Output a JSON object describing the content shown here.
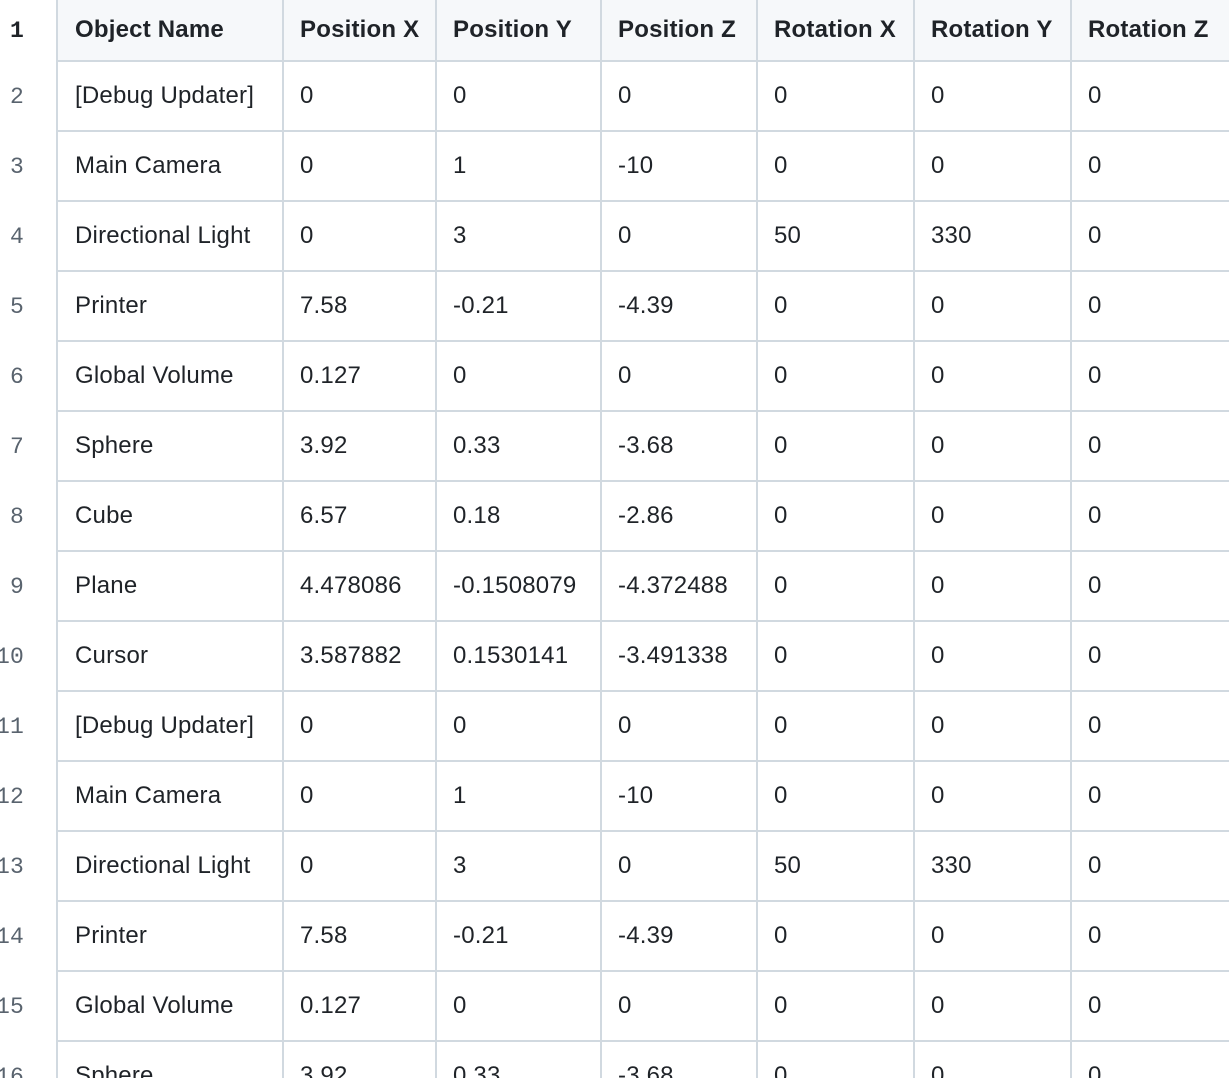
{
  "table": {
    "headers": [
      "Object Name",
      "Position X",
      "Position Y",
      "Position Z",
      "Rotation X",
      "Rotation Y",
      "Rotation Z"
    ],
    "rows": [
      {
        "line": "2",
        "cells": [
          "[Debug Updater]",
          "0",
          "0",
          "0",
          "0",
          "0",
          "0"
        ]
      },
      {
        "line": "3",
        "cells": [
          "Main Camera",
          "0",
          "1",
          "-10",
          "0",
          "0",
          "0"
        ]
      },
      {
        "line": "4",
        "cells": [
          "Directional Light",
          "0",
          "3",
          "0",
          "50",
          "330",
          "0"
        ]
      },
      {
        "line": "5",
        "cells": [
          "Printer",
          "7.58",
          "-0.21",
          "-4.39",
          "0",
          "0",
          "0"
        ]
      },
      {
        "line": "6",
        "cells": [
          "Global Volume",
          "0.127",
          "0",
          "0",
          "0",
          "0",
          "0"
        ]
      },
      {
        "line": "7",
        "cells": [
          "Sphere",
          "3.92",
          "0.33",
          "-3.68",
          "0",
          "0",
          "0"
        ]
      },
      {
        "line": "8",
        "cells": [
          "Cube",
          "6.57",
          "0.18",
          "-2.86",
          "0",
          "0",
          "0"
        ]
      },
      {
        "line": "9",
        "cells": [
          "Plane",
          "4.478086",
          "-0.1508079",
          "-4.372488",
          "0",
          "0",
          "0"
        ]
      },
      {
        "line": "10",
        "cells": [
          "Cursor",
          "3.587882",
          "0.1530141",
          "-3.491338",
          "0",
          "0",
          "0"
        ]
      },
      {
        "line": "11",
        "cells": [
          "[Debug Updater]",
          "0",
          "0",
          "0",
          "0",
          "0",
          "0"
        ]
      },
      {
        "line": "12",
        "cells": [
          "Main Camera",
          "0",
          "1",
          "-10",
          "0",
          "0",
          "0"
        ]
      },
      {
        "line": "13",
        "cells": [
          "Directional Light",
          "0",
          "3",
          "0",
          "50",
          "330",
          "0"
        ]
      },
      {
        "line": "14",
        "cells": [
          "Printer",
          "7.58",
          "-0.21",
          "-4.39",
          "0",
          "0",
          "0"
        ]
      },
      {
        "line": "15",
        "cells": [
          "Global Volume",
          "0.127",
          "0",
          "0",
          "0",
          "0",
          "0"
        ]
      },
      {
        "line": "16",
        "cells": [
          "Sphere",
          "3.92",
          "0.33",
          "-3.68",
          "0",
          "0",
          "0"
        ]
      }
    ],
    "header_line": "1"
  }
}
